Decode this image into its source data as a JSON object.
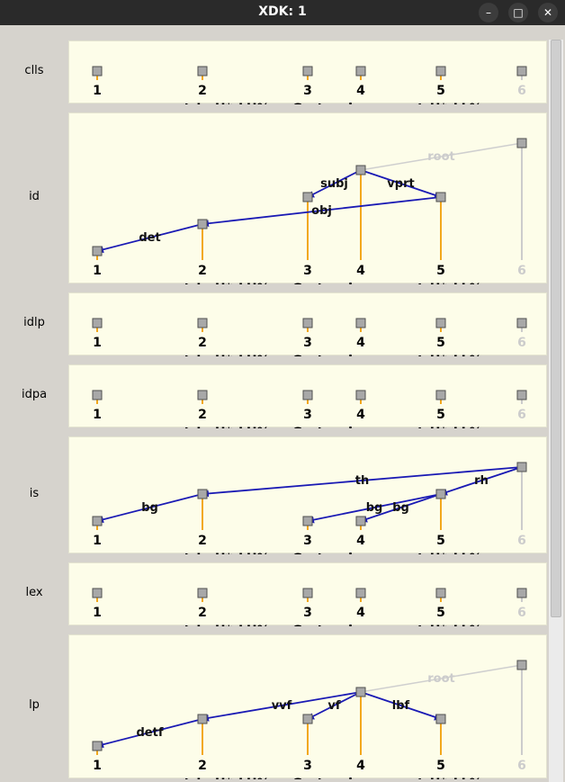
{
  "window": {
    "title": "XDK: 1",
    "buttons": [
      "minimize-icon",
      "maximize-icon",
      "close-icon"
    ]
  },
  "colors": {
    "arc": "#1a1ab4",
    "root_arc": "#cfcfcf",
    "stem": "#f2a81d",
    "ghost": "#cccccc",
    "panel_bg": "#fdfde9"
  },
  "nodes": [
    {
      "index": "1",
      "word": "a"
    },
    {
      "index": "2",
      "word": "present_L+H*_LH%"
    },
    {
      "index": "3",
      "word": "Gert"
    },
    {
      "index": "4",
      "word": "has"
    },
    {
      "index": "5",
      "word": "got_H*_LL%"
    },
    {
      "index": "6",
      "word": "."
    }
  ],
  "dimensions": [
    {
      "name": "clls",
      "levels": [
        0,
        0,
        0,
        0,
        0,
        0
      ],
      "edges": []
    },
    {
      "name": "id",
      "levels": [
        0,
        1,
        2,
        3,
        2,
        4
      ],
      "edges": [
        {
          "from": 4,
          "to": 3,
          "label": "subj"
        },
        {
          "from": 4,
          "to": 5,
          "label": "vprt"
        },
        {
          "from": 5,
          "to": 2,
          "label": "obj"
        },
        {
          "from": 2,
          "to": 1,
          "label": "det"
        },
        {
          "from": 6,
          "to": 4,
          "label": "root",
          "root": true
        }
      ]
    },
    {
      "name": "idlp",
      "levels": [
        0,
        0,
        0,
        0,
        0,
        0
      ],
      "edges": []
    },
    {
      "name": "idpa",
      "levels": [
        0,
        0,
        0,
        0,
        0,
        0
      ],
      "edges": []
    },
    {
      "name": "is",
      "levels": [
        0,
        1,
        0,
        0,
        1,
        2
      ],
      "edges": [
        {
          "from": 6,
          "to": 2,
          "label": "th"
        },
        {
          "from": 6,
          "to": 5,
          "label": "rh"
        },
        {
          "from": 2,
          "to": 1,
          "label": "bg"
        },
        {
          "from": 5,
          "to": 3,
          "label": "bg"
        },
        {
          "from": 5,
          "to": 4,
          "label": "bg"
        }
      ]
    },
    {
      "name": "lex",
      "levels": [
        0,
        0,
        0,
        0,
        0,
        0
      ],
      "edges": []
    },
    {
      "name": "lp",
      "levels": [
        0,
        1,
        1,
        2,
        1,
        3
      ],
      "edges": [
        {
          "from": 4,
          "to": 2,
          "label": "vvf"
        },
        {
          "from": 4,
          "to": 3,
          "label": "vf"
        },
        {
          "from": 4,
          "to": 5,
          "label": "lbf"
        },
        {
          "from": 2,
          "to": 1,
          "label": "detf"
        },
        {
          "from": 6,
          "to": 4,
          "label": "root",
          "root": true
        }
      ]
    }
  ]
}
